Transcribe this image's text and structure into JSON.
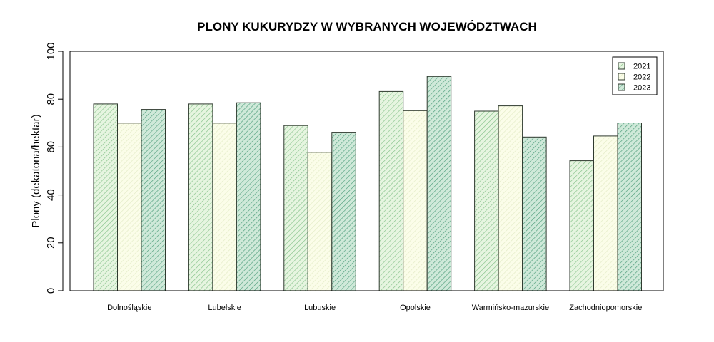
{
  "chart_data": {
    "type": "bar",
    "title": "PLONY KUKURYDZY W WYBRANYCH WOJEWÓDZTWACH",
    "xlabel": "",
    "ylabel": "Plony (dekatona/hektar)",
    "ylim": [
      0,
      100
    ],
    "yticks": [
      0,
      20,
      40,
      60,
      80,
      100
    ],
    "categories": [
      "Dolnośląskie",
      "Lubelskie",
      "Lubuskie",
      "Opolskie",
      "Warmińsko-mazurskie",
      "Zachodniopomorskie"
    ],
    "series": [
      {
        "name": "2021",
        "values": [
          78,
          78,
          69,
          83.2,
          75,
          54.3
        ],
        "fill": "#e6f5e0",
        "hatch": "#86c28a"
      },
      {
        "name": "2022",
        "values": [
          70,
          70,
          57.8,
          75.2,
          77.2,
          64.6
        ],
        "fill": "#fbfde9",
        "hatch": "#e3ebc6"
      },
      {
        "name": "2023",
        "values": [
          75.7,
          78.5,
          66.2,
          89.5,
          64.2,
          70.1
        ],
        "fill": "#cfe9d9",
        "hatch": "#4f9e7c"
      }
    ],
    "legend_position": "top-right",
    "grid": false
  }
}
